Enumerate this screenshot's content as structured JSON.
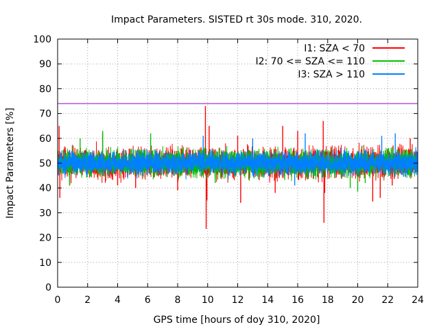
{
  "chart_data": {
    "type": "line",
    "title": "Impact Parameters. SISTED rt 30s mode. 310, 2020.",
    "xlabel": "GPS time [hours of doy 310, 2020]",
    "ylabel": "Impact Parameters [%]",
    "xlim": [
      0,
      24
    ],
    "ylim": [
      0,
      100
    ],
    "xticks": [
      0,
      2,
      4,
      6,
      8,
      10,
      12,
      14,
      16,
      18,
      20,
      22,
      24
    ],
    "yticks": [
      0,
      10,
      20,
      30,
      40,
      50,
      60,
      70,
      80,
      90,
      100
    ],
    "grid": true,
    "legend_position": "top-right",
    "threshold": {
      "value": 74,
      "color": "#9400d3"
    },
    "series": [
      {
        "name": "I1: SZA < 70",
        "color": "#ff0000",
        "baseline": 50,
        "spikes": [
          {
            "x": 0.1,
            "y": 65
          },
          {
            "x": 0.15,
            "y": 36
          },
          {
            "x": 0.8,
            "y": 41
          },
          {
            "x": 3.0,
            "y": 62
          },
          {
            "x": 4.0,
            "y": 41
          },
          {
            "x": 5.2,
            "y": 40
          },
          {
            "x": 8.0,
            "y": 39
          },
          {
            "x": 9.85,
            "y": 73
          },
          {
            "x": 9.9,
            "y": 23.5
          },
          {
            "x": 9.95,
            "y": 35
          },
          {
            "x": 10.1,
            "y": 65
          },
          {
            "x": 12.2,
            "y": 34
          },
          {
            "x": 12.0,
            "y": 61
          },
          {
            "x": 14.5,
            "y": 38
          },
          {
            "x": 15.0,
            "y": 65
          },
          {
            "x": 16.0,
            "y": 63
          },
          {
            "x": 17.7,
            "y": 67
          },
          {
            "x": 17.75,
            "y": 26
          },
          {
            "x": 17.8,
            "y": 38
          },
          {
            "x": 21.0,
            "y": 34.5
          },
          {
            "x": 21.5,
            "y": 36
          },
          {
            "x": 22.3,
            "y": 41
          },
          {
            "x": 23.5,
            "y": 60
          }
        ]
      },
      {
        "name": "I2: 70 <= SZA <= 110",
        "color": "#00c000",
        "baseline": 50,
        "spikes": [
          {
            "x": 0.8,
            "y": 41
          },
          {
            "x": 1.5,
            "y": 60
          },
          {
            "x": 3.0,
            "y": 63
          },
          {
            "x": 6.2,
            "y": 62
          },
          {
            "x": 10.5,
            "y": 42
          },
          {
            "x": 19.5,
            "y": 40
          },
          {
            "x": 20.0,
            "y": 38.5
          },
          {
            "x": 20.5,
            "y": 42
          }
        ]
      },
      {
        "name": "I3: SZA > 110",
        "color": "#0080ff",
        "baseline": 50,
        "spikes": [
          {
            "x": 9.7,
            "y": 61
          },
          {
            "x": 13.0,
            "y": 60
          },
          {
            "x": 16.5,
            "y": 62
          },
          {
            "x": 21.6,
            "y": 61
          },
          {
            "x": 22.5,
            "y": 62
          },
          {
            "x": 15.8,
            "y": 41
          }
        ]
      }
    ]
  }
}
